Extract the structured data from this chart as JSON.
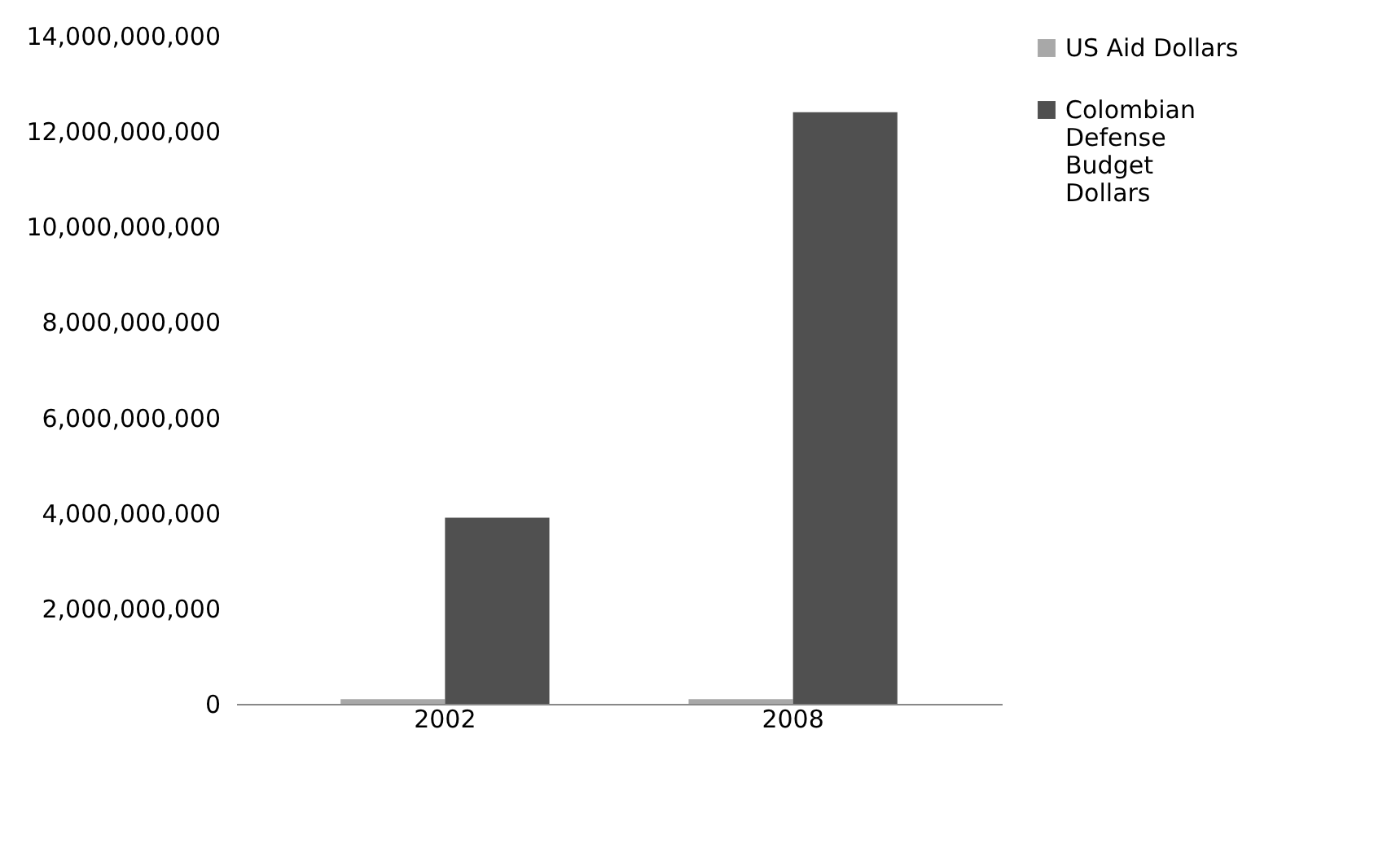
{
  "chart_data": {
    "type": "bar",
    "categories": [
      "2002",
      "2008"
    ],
    "series": [
      {
        "name": "US Aid Dollars",
        "color": "#a8a8a8",
        "values": [
          100000000,
          100000000
        ]
      },
      {
        "name": "Colombian Defense Budget Dollars",
        "color": "#505050",
        "values": [
          3900000000,
          12400000000
        ]
      }
    ],
    "ylim": [
      0,
      14000000000
    ],
    "yticks": [
      0,
      {
        "value": 2000000000,
        "label": "2,000,000,000"
      },
      {
        "value": 4000000000,
        "label": "4,000,000,000"
      },
      {
        "value": 6000000000,
        "label": "6,000,000,000"
      },
      {
        "value": 8000000000,
        "label": "8,000,000,000"
      },
      {
        "value": 10000000000,
        "label": "10,000,000,000"
      },
      {
        "value": 12000000000,
        "label": "12,000,000,000"
      },
      {
        "value": 14000000000,
        "label": "14,000,000,000"
      }
    ],
    "grid": false,
    "legend": "right"
  }
}
